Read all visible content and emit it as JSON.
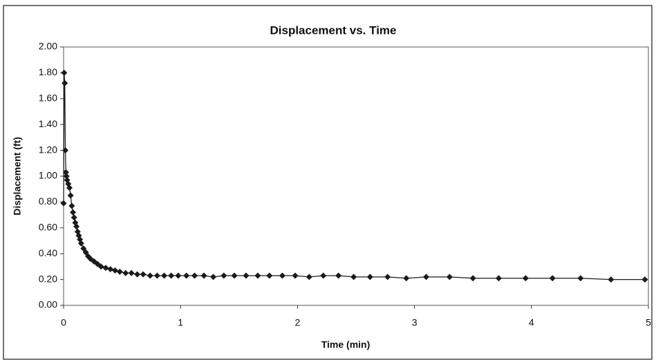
{
  "chart_data": {
    "type": "line",
    "title": "Displacement vs. Time",
    "x_label": "Time (min)",
    "y_label": "Displacement (ft)",
    "xlim": [
      0,
      5
    ],
    "xticks": [
      0,
      1,
      2,
      3,
      4,
      5
    ],
    "ylim": [
      0,
      2
    ],
    "yticks": [
      {
        "value": 0,
        "label": "0.00"
      },
      {
        "value": 0.2,
        "label": "0.20"
      },
      {
        "value": 0.4,
        "label": "0.40"
      },
      {
        "value": 0.6,
        "label": "0.60"
      },
      {
        "value": 0.8,
        "label": "0.80"
      },
      {
        "value": 1,
        "label": "1.00"
      },
      {
        "value": 1.2,
        "label": "1.20"
      },
      {
        "value": 1.4,
        "label": "1.40"
      },
      {
        "value": 1.6,
        "label": "1.60"
      },
      {
        "value": 1.8,
        "label": "1.80"
      },
      {
        "value": 2,
        "label": "2.00"
      }
    ],
    "grid": false,
    "marker": "diamond",
    "x": [
      0,
      0.005,
      0.01,
      0.015,
      0.02,
      0.025,
      0.03,
      0.04,
      0.05,
      0.06,
      0.07,
      0.08,
      0.09,
      0.1,
      0.11,
      0.12,
      0.13,
      0.14,
      0.15,
      0.17,
      0.19,
      0.21,
      0.23,
      0.26,
      0.29,
      0.32,
      0.36,
      0.4,
      0.44,
      0.48,
      0.53,
      0.58,
      0.63,
      0.68,
      0.74,
      0.8,
      0.86,
      0.92,
      0.98,
      1.05,
      1.12,
      1.2,
      1.28,
      1.37,
      1.46,
      1.56,
      1.66,
      1.76,
      1.87,
      1.98,
      2.1,
      2.22,
      2.35,
      2.48,
      2.62,
      2.77,
      2.93,
      3.1,
      3.3,
      3.5,
      3.72,
      3.95,
      4.18,
      4.42,
      4.68,
      4.97
    ],
    "series": [
      {
        "name": "Displacement",
        "color": "#1a1a1a",
        "values": [
          0.79,
          1.8,
          1.72,
          1.2,
          1.03,
          1.0,
          0.97,
          0.94,
          0.91,
          0.85,
          0.77,
          0.72,
          0.68,
          0.64,
          0.61,
          0.57,
          0.54,
          0.51,
          0.48,
          0.44,
          0.41,
          0.38,
          0.36,
          0.34,
          0.32,
          0.3,
          0.29,
          0.28,
          0.27,
          0.26,
          0.25,
          0.25,
          0.24,
          0.24,
          0.23,
          0.23,
          0.23,
          0.23,
          0.23,
          0.23,
          0.23,
          0.23,
          0.22,
          0.23,
          0.23,
          0.23,
          0.23,
          0.23,
          0.23,
          0.23,
          0.22,
          0.23,
          0.23,
          0.22,
          0.22,
          0.22,
          0.21,
          0.22,
          0.22,
          0.21,
          0.21,
          0.21,
          0.21,
          0.21,
          0.2,
          0.2
        ]
      }
    ]
  }
}
